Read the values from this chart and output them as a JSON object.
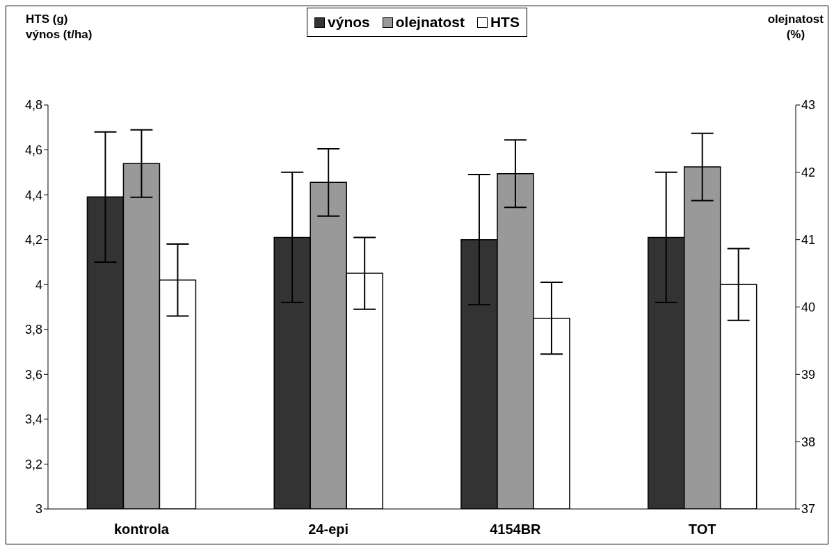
{
  "chart_data": {
    "type": "bar",
    "categories": [
      "kontrola",
      "24-epi",
      "4154BR",
      "TOT"
    ],
    "series": [
      {
        "name": "výnos",
        "color": "#333333",
        "values": [
          4.39,
          4.21,
          4.2,
          4.21
        ],
        "errors": [
          0.29,
          0.29,
          0.29,
          0.29
        ]
      },
      {
        "name": "olejnatost",
        "color": "#999999",
        "axis": "y2",
        "values": [
          42.13,
          41.85,
          41.98,
          42.08
        ],
        "errors": [
          0.5,
          0.5,
          0.5,
          0.5
        ]
      },
      {
        "name": "HTS",
        "color": "#ffffff",
        "values": [
          4.02,
          4.05,
          3.85,
          4.0
        ],
        "errors": [
          0.16,
          0.16,
          0.16,
          0.16
        ]
      }
    ],
    "ylabel": "HTS (g)\nvýnos (t/ha)",
    "y2label": "olejnatost\n(%)",
    "ylim": [
      3,
      4.8
    ],
    "yticks": [
      3,
      {
        "value": 3.2,
        "label": "3,2"
      },
      {
        "value": 3.4,
        "label": "3,4"
      },
      {
        "value": 3.6,
        "label": "3,6"
      },
      {
        "value": 3.8,
        "label": "3,8"
      },
      4,
      {
        "value": 4.2,
        "label": "4,2"
      },
      {
        "value": 4.4,
        "label": "4,4"
      },
      {
        "value": 4.6,
        "label": "4,6"
      },
      {
        "value": 4.8,
        "label": "4,8"
      }
    ],
    "y2lim": [
      37,
      43
    ],
    "y2ticks": [
      37,
      38,
      39,
      40,
      41,
      42,
      43
    ],
    "grid": false,
    "legend": "top"
  }
}
